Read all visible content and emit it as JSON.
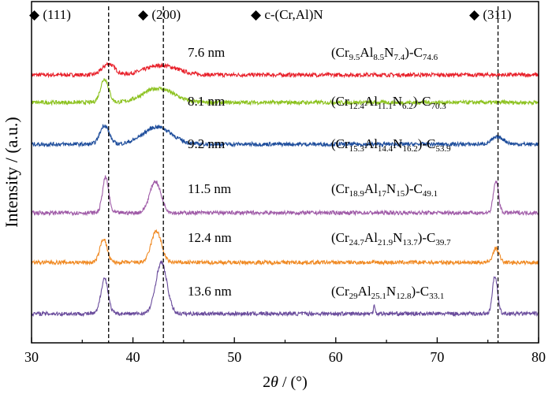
{
  "chart_data": {
    "type": "line",
    "xlabel_prefix": "2",
    "xlabel_theta": "θ",
    "xlabel_suffix": " / (°)",
    "ylabel": "Intensity / (a.u.)",
    "xlim": [
      30,
      80
    ],
    "xticks": [
      "30",
      "40",
      "50",
      "60",
      "70",
      "80"
    ],
    "grid": false,
    "reference_lines": [
      37.6,
      43.0,
      76.0
    ],
    "phase_labels": [
      {
        "text": "◆ (111)"
      },
      {
        "text": "◆ (200)"
      },
      {
        "text": "◆ c-(Cr,Al)N"
      },
      {
        "text": "◆ (311)"
      }
    ],
    "series": [
      {
        "name": "7.6 nm",
        "color": "#e8202a",
        "formula": [
          "(Cr",
          "9.5",
          "Al",
          "8.5",
          "N",
          "7.4",
          ")-C",
          "74.6"
        ],
        "peaks": [
          {
            "x": 37.6,
            "h": 14,
            "w": 0.6
          },
          {
            "x": 42.8,
            "h": 12,
            "w": 1.6
          }
        ]
      },
      {
        "name": "8.1 nm",
        "color": "#8cc21f",
        "formula": [
          "(Cr",
          "12.4",
          "Al",
          "11.1",
          "N",
          "6.2",
          ")-C",
          "70.3"
        ],
        "peaks": [
          {
            "x": 37.2,
            "h": 30,
            "w": 0.4
          },
          {
            "x": 42.5,
            "h": 18,
            "w": 1.5
          }
        ]
      },
      {
        "name": "9.2 nm",
        "color": "#1f4e9c",
        "formula": [
          "(Cr",
          "15.3",
          "Al",
          "14.4",
          "N",
          "16.2",
          ")-C",
          "53.9"
        ],
        "peaks": [
          {
            "x": 37.2,
            "h": 24,
            "w": 0.45
          },
          {
            "x": 42.4,
            "h": 22,
            "w": 1.4
          },
          {
            "x": 76.0,
            "h": 9,
            "w": 0.6
          }
        ]
      },
      {
        "name": "11.5 nm",
        "color": "#a05ca8",
        "formula": [
          "(Cr",
          "18.9",
          "Al",
          "17",
          "N",
          "15",
          ")-C",
          "49.1"
        ],
        "peaks": [
          {
            "x": 37.3,
            "h": 45,
            "w": 0.3
          },
          {
            "x": 42.2,
            "h": 40,
            "w": 0.55
          },
          {
            "x": 75.8,
            "h": 40,
            "w": 0.25
          }
        ]
      },
      {
        "name": "12.4 nm",
        "color": "#f08a24",
        "formula": [
          "(Cr",
          "24.7",
          "Al",
          "21.9",
          "N",
          "13.7",
          ")-C",
          "39.7"
        ],
        "peaks": [
          {
            "x": 37.1,
            "h": 30,
            "w": 0.35
          },
          {
            "x": 42.3,
            "h": 40,
            "w": 0.5
          },
          {
            "x": 75.8,
            "h": 18,
            "w": 0.3
          }
        ]
      },
      {
        "name": "13.6 nm",
        "color": "#6a4c9c",
        "formula": [
          "(Cr",
          "29",
          "Al",
          "25.1",
          "N",
          "12.8",
          ")-C",
          "33.1"
        ],
        "peaks": [
          {
            "x": 37.2,
            "h": 45,
            "w": 0.35
          },
          {
            "x": 42.8,
            "h": 65,
            "w": 0.55
          },
          {
            "x": 75.7,
            "h": 48,
            "w": 0.25
          },
          {
            "x": 63.8,
            "h": 12,
            "w": 0.08
          }
        ]
      }
    ]
  }
}
